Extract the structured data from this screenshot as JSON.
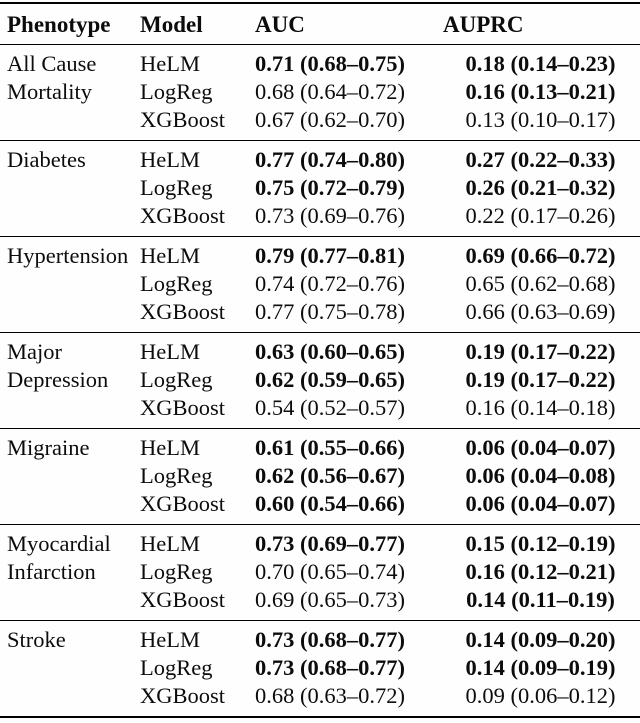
{
  "colors": {
    "background": "#fefefe",
    "text": "#0c0c0c",
    "rule": "#000000"
  },
  "header": {
    "phenotype": "Phenotype",
    "model": "Model",
    "auc": "AUC",
    "auprc": "AUPRC"
  },
  "groups": [
    {
      "phenotype": "All Cause Mortality",
      "rows": [
        {
          "model": "HeLM",
          "auc": "0.71 (0.68–0.75)",
          "auc_bold": true,
          "auprc": "0.18 (0.14–0.23)",
          "auprc_bold": true
        },
        {
          "model": "LogReg",
          "auc": "0.68 (0.64–0.72)",
          "auc_bold": false,
          "auprc": "0.16 (0.13–0.21)",
          "auprc_bold": true
        },
        {
          "model": "XGBoost",
          "auc": "0.67 (0.62–0.70)",
          "auc_bold": false,
          "auprc": "0.13 (0.10–0.17)",
          "auprc_bold": false
        }
      ]
    },
    {
      "phenotype": "Diabetes",
      "rows": [
        {
          "model": "HeLM",
          "auc": "0.77 (0.74–0.80)",
          "auc_bold": true,
          "auprc": "0.27 (0.22–0.33)",
          "auprc_bold": true
        },
        {
          "model": "LogReg",
          "auc": "0.75 (0.72–0.79)",
          "auc_bold": true,
          "auprc": "0.26 (0.21–0.32)",
          "auprc_bold": true
        },
        {
          "model": "XGBoost",
          "auc": "0.73 (0.69–0.76)",
          "auc_bold": false,
          "auprc": "0.22 (0.17–0.26)",
          "auprc_bold": false
        }
      ]
    },
    {
      "phenotype": "Hypertension",
      "rows": [
        {
          "model": "HeLM",
          "auc": "0.79 (0.77–0.81)",
          "auc_bold": true,
          "auprc": "0.69 (0.66–0.72)",
          "auprc_bold": true
        },
        {
          "model": "LogReg",
          "auc": "0.74 (0.72–0.76)",
          "auc_bold": false,
          "auprc": "0.65 (0.62–0.68)",
          "auprc_bold": false
        },
        {
          "model": "XGBoost",
          "auc": "0.77 (0.75–0.78)",
          "auc_bold": false,
          "auprc": "0.66 (0.63–0.69)",
          "auprc_bold": false
        }
      ]
    },
    {
      "phenotype": "Major Depression",
      "rows": [
        {
          "model": "HeLM",
          "auc": "0.63 (0.60–0.65)",
          "auc_bold": true,
          "auprc": "0.19 (0.17–0.22)",
          "auprc_bold": true
        },
        {
          "model": "LogReg",
          "auc": "0.62 (0.59–0.65)",
          "auc_bold": true,
          "auprc": "0.19 (0.17–0.22)",
          "auprc_bold": true
        },
        {
          "model": "XGBoost",
          "auc": "0.54 (0.52–0.57)",
          "auc_bold": false,
          "auprc": "0.16 (0.14–0.18)",
          "auprc_bold": false
        }
      ]
    },
    {
      "phenotype": "Migraine",
      "rows": [
        {
          "model": "HeLM",
          "auc": "0.61 (0.55–0.66)",
          "auc_bold": true,
          "auprc": "0.06 (0.04–0.07)",
          "auprc_bold": true
        },
        {
          "model": "LogReg",
          "auc": "0.62 (0.56–0.67)",
          "auc_bold": true,
          "auprc": "0.06 (0.04–0.08)",
          "auprc_bold": true
        },
        {
          "model": "XGBoost",
          "auc": "0.60 (0.54–0.66)",
          "auc_bold": true,
          "auprc": "0.06 (0.04–0.07)",
          "auprc_bold": true
        }
      ]
    },
    {
      "phenotype": "Myocardial Infarction",
      "rows": [
        {
          "model": "HeLM",
          "auc": "0.73 (0.69–0.77)",
          "auc_bold": true,
          "auprc": "0.15 (0.12–0.19)",
          "auprc_bold": true
        },
        {
          "model": "LogReg",
          "auc": "0.70 (0.65–0.74)",
          "auc_bold": false,
          "auprc": "0.16 (0.12–0.21)",
          "auprc_bold": true
        },
        {
          "model": "XGBoost",
          "auc": "0.69 (0.65–0.73)",
          "auc_bold": false,
          "auprc": "0.14 (0.11–0.19)",
          "auprc_bold": true
        }
      ]
    },
    {
      "phenotype": "Stroke",
      "rows": [
        {
          "model": "HeLM",
          "auc": "0.73 (0.68–0.77)",
          "auc_bold": true,
          "auprc": "0.14 (0.09–0.20)",
          "auprc_bold": true
        },
        {
          "model": "LogReg",
          "auc": "0.73 (0.68–0.77)",
          "auc_bold": true,
          "auprc": "0.14 (0.09–0.19)",
          "auprc_bold": true
        },
        {
          "model": "XGBoost",
          "auc": "0.68 (0.63–0.72)",
          "auc_bold": false,
          "auprc": "0.09 (0.06–0.12)",
          "auprc_bold": false
        }
      ]
    }
  ]
}
